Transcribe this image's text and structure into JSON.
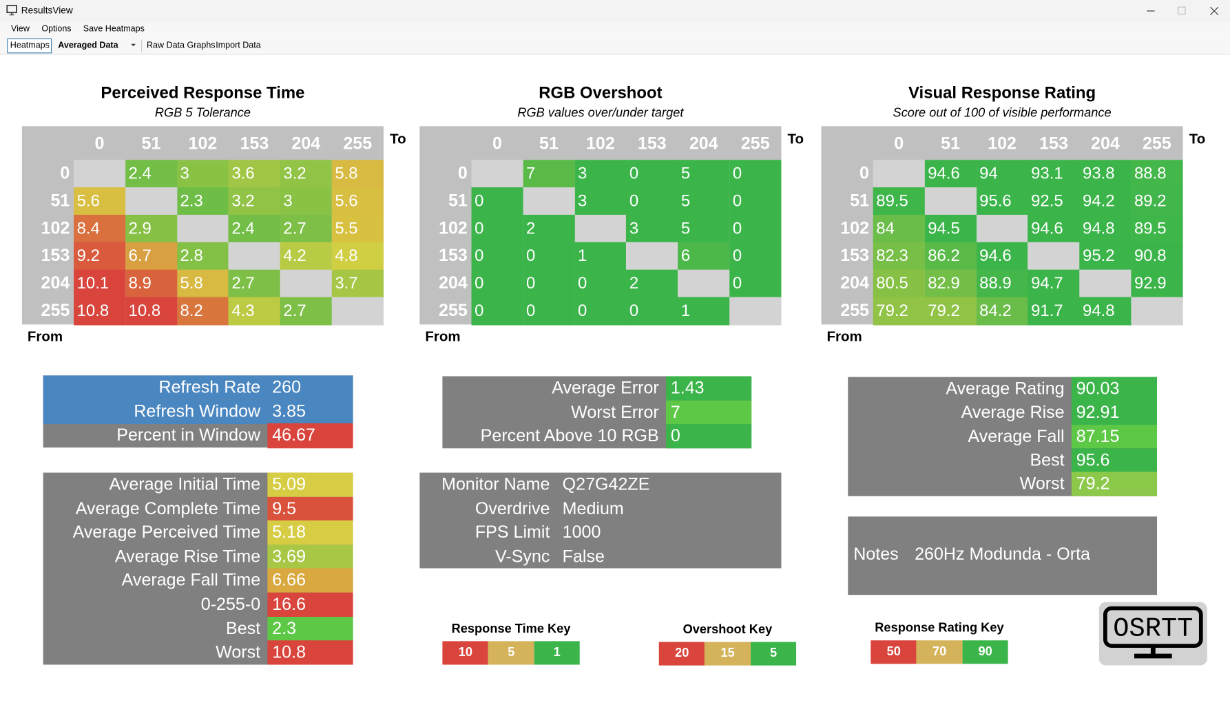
{
  "window": {
    "title": "ResultsView"
  },
  "menu": [
    "View",
    "Options",
    "Save Heatmaps"
  ],
  "toolbar": {
    "tab": "Heatmaps",
    "dropdown": "Averaged Data",
    "buttons": [
      "Raw Data Graphs",
      "Import Data"
    ]
  },
  "heatmaps": [
    {
      "title": "Perceived Response Time",
      "subtitle": "RGB 5 Tolerance",
      "to": "To",
      "from": "From",
      "levels": [
        0,
        51,
        102,
        153,
        204,
        255
      ],
      "key": 0,
      "colors": [
        "#d9443c",
        "#d8cf42",
        "#3bb54a"
      ],
      "rows": [
        [
          null,
          2.4,
          3,
          3.6,
          3.2,
          5.8
        ],
        [
          5.6,
          null,
          2.3,
          3.2,
          3,
          5.6
        ],
        [
          8.4,
          2.9,
          null,
          2.4,
          2.7,
          5.5
        ],
        [
          9.2,
          6.7,
          2.8,
          null,
          4.2,
          4.8
        ],
        [
          10.1,
          8.9,
          5.8,
          2.7,
          null,
          3.7
        ],
        [
          10.8,
          10.8,
          8.2,
          4.3,
          2.7,
          null
        ]
      ]
    },
    {
      "title": "RGB Overshoot",
      "subtitle": "RGB values over/under target",
      "to": "To",
      "from": "From",
      "levels": [
        0,
        51,
        102,
        153,
        204,
        255
      ],
      "key": 1,
      "colors": [
        "#d9443c",
        "#d8cf42",
        "#3bb54a"
      ],
      "rows": [
        [
          null,
          7,
          3,
          0,
          5,
          0
        ],
        [
          0,
          null,
          3,
          0,
          5,
          0
        ],
        [
          0,
          2,
          null,
          3,
          5,
          0
        ],
        [
          0,
          0,
          1,
          null,
          6,
          0
        ],
        [
          0,
          0,
          0,
          2,
          null,
          0
        ],
        [
          0,
          0,
          0,
          0,
          1,
          null
        ]
      ]
    },
    {
      "title": "Visual Response Rating",
      "subtitle": "Score out of 100 of visible performance",
      "to": "To",
      "from": "From",
      "levels": [
        0,
        51,
        102,
        153,
        204,
        255
      ],
      "key": 2,
      "colors": [
        "#d9443c",
        "#d8cf42",
        "#3bb54a"
      ],
      "rows": [
        [
          null,
          94.6,
          94,
          93.1,
          93.8,
          88.8
        ],
        [
          89.5,
          null,
          95.6,
          92.5,
          94.2,
          89.2
        ],
        [
          84,
          94.5,
          null,
          94.6,
          94.8,
          89.5
        ],
        [
          82.3,
          86.2,
          94.6,
          null,
          95.2,
          90.8
        ],
        [
          80.5,
          82.9,
          88.9,
          94.7,
          null,
          92.9
        ],
        [
          79.2,
          79.2,
          84.2,
          91.7,
          94.8,
          null
        ]
      ]
    }
  ],
  "panels": [
    {
      "rows": [
        {
          "label": "Refresh Rate",
          "value": 260,
          "color": "#4a86c0",
          "label_color": "#4a86c0"
        },
        {
          "label": "Refresh Window",
          "value": 3.85,
          "color": "#4a86c0",
          "label_color": "#4a86c0"
        },
        {
          "label": "Percent in Window",
          "value": 46.67,
          "color": "#d9443c"
        }
      ]
    },
    {
      "rows": [
        {
          "label": "Average Initial Time",
          "value": 5.09,
          "color": "#d7cd45"
        },
        {
          "label": "Average Complete Time",
          "value": 9.5,
          "color": "#d9523c"
        },
        {
          "label": "Average Perceived Time",
          "value": 5.18,
          "color": "#d7cd45"
        },
        {
          "label": "Average Rise Time",
          "value": 3.69,
          "color": "#a8c845"
        },
        {
          "label": "Average Fall Time",
          "value": 6.66,
          "color": "#d9a83f"
        },
        {
          "label": "0-255-0",
          "value": 16.6,
          "color": "#d9443c"
        },
        {
          "label": "Best",
          "value": 2.3,
          "color": "#5cc845"
        },
        {
          "label": "Worst",
          "value": 10.8,
          "color": "#d9443c"
        }
      ]
    },
    {
      "rows": [
        {
          "label": "Average Error",
          "value": 1.43,
          "color": "#3bb54a"
        },
        {
          "label": "Worst Error",
          "value": 7,
          "color": "#5cc845"
        },
        {
          "label": "Percent Above 10 RGB",
          "value": 0,
          "color": "#3bb54a"
        }
      ]
    },
    {
      "rows": [
        {
          "label": "Average Rating",
          "value": 90.03,
          "color": "#3bb54a"
        },
        {
          "label": "Average Rise",
          "value": 92.91,
          "color": "#3bb54a"
        },
        {
          "label": "Average Fall",
          "value": 87.15,
          "color": "#5cc845"
        },
        {
          "label": "Best",
          "value": 95.6,
          "color": "#3bb54a"
        },
        {
          "label": "Worst",
          "value": 79.2,
          "color": "#8cc84a"
        }
      ]
    }
  ],
  "monitor": {
    "rows": [
      {
        "label": "Monitor Name",
        "value": "Q27G42ZE"
      },
      {
        "label": "Overdrive",
        "value": "Medium"
      },
      {
        "label": "FPS Limit",
        "value": 1000
      },
      {
        "label": "V-Sync",
        "value": "False"
      }
    ]
  },
  "notes": {
    "label": "Notes",
    "value": "260Hz Modunda - Orta"
  },
  "keys": [
    {
      "title": "Response Time Key",
      "values": [
        10,
        5,
        1
      ],
      "colors": [
        "#d9443c",
        "#d4b35a",
        "#3bb54a"
      ]
    },
    {
      "title": "Overshoot Key",
      "values": [
        20,
        15,
        5
      ],
      "colors": [
        "#d9443c",
        "#d4b35a",
        "#3bb54a"
      ]
    },
    {
      "title": "Response Rating Key",
      "values": [
        50,
        70,
        90
      ],
      "colors": [
        "#d9443c",
        "#d4b35a",
        "#3bb54a"
      ]
    }
  ],
  "logo": "OSRTT"
}
